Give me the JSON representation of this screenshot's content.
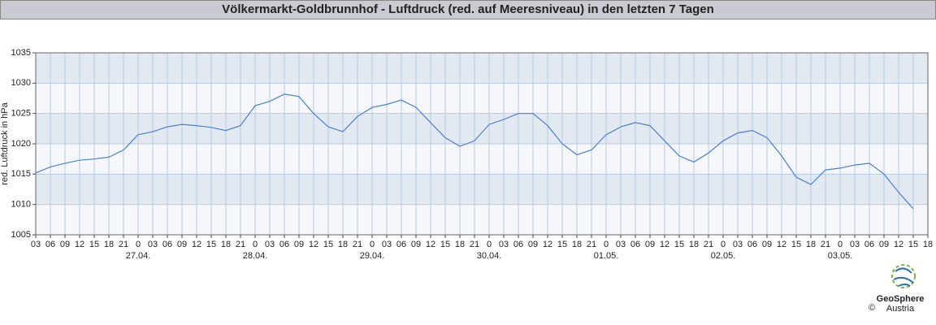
{
  "chart_data": {
    "type": "line",
    "title": "Völkermarkt-Goldbrunnhof - Luftdruck (red. auf Meeresniveau) in den letzten 7 Tagen",
    "y_label": "red. Luftdruck in hPa",
    "categories": [
      "03",
      "06",
      "09",
      "12",
      "15",
      "18",
      "21",
      "0",
      "03",
      "06",
      "09",
      "12",
      "15",
      "18",
      "21",
      "0",
      "03",
      "06",
      "09",
      "12",
      "15",
      "18",
      "21",
      "0",
      "03",
      "06",
      "09",
      "12",
      "15",
      "18",
      "21",
      "0",
      "03",
      "06",
      "09",
      "12",
      "15",
      "18",
      "21",
      "0",
      "03",
      "06",
      "09",
      "12",
      "15",
      "18",
      "21",
      "0",
      "03",
      "06",
      "09",
      "12",
      "15",
      "18",
      "21",
      "0",
      "03",
      "06",
      "09",
      "12",
      "15",
      "18"
    ],
    "dates": [
      "27.04.",
      "28.04.",
      "29.04.",
      "30.04.",
      "01.05.",
      "02.05.",
      "03.05."
    ],
    "values": [
      1015.2,
      1016.2,
      1016.8,
      1017.3,
      1017.5,
      1017.8,
      1019.0,
      1021.5,
      1022.0,
      1022.8,
      1023.2,
      1023.0,
      1022.7,
      1022.2,
      1023.0,
      1026.3,
      1027.0,
      1028.2,
      1027.8,
      1025.0,
      1022.8,
      1022.0,
      1024.5,
      1026.0,
      1026.5,
      1027.2,
      1026.0,
      1023.5,
      1021.0,
      1019.6,
      1020.5,
      1023.2,
      1024.0,
      1025.0,
      1025.0,
      1023.0,
      1020.0,
      1018.2,
      1019.0,
      1021.5,
      1022.8,
      1023.5,
      1023.0,
      1020.5,
      1018.0,
      1017.0,
      1018.5,
      1020.5,
      1021.8,
      1022.2,
      1021.0,
      1018.0,
      1014.5,
      1013.3,
      1015.7,
      1016.0,
      1016.5,
      1016.8,
      1015.0,
      1012.0,
      1009.3,
      null
    ],
    "color": "#4a7fd4",
    "ylim": [
      1005,
      1035
    ],
    "yticks": [
      1005,
      1010,
      1015,
      1020,
      1025,
      1030,
      1035
    ],
    "grid": true,
    "logo": {
      "name": "GeoSphere",
      "sub": "Austria",
      "copyright": "©"
    }
  }
}
